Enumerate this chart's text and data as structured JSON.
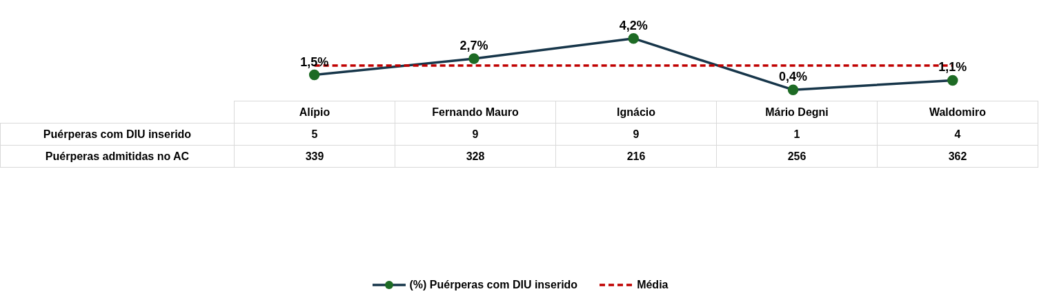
{
  "chart_data": [
    {
      "type": "line",
      "categories": [
        null,
        null,
        null,
        null,
        null
      ],
      "series": [
        {
          "name": "(%) Puérperas com DIU inserido",
          "color": "#17364a",
          "colors": [
            "#1e6b25",
            "#1e6b25",
            "#1e6b25",
            "#1e6b25",
            "#1e6b25"
          ],
          "values": [
            1.5,
            2.7,
            4.2,
            0.4,
            1.1
          ],
          "value_labels": [
            "1,5%",
            "2,7%",
            "4,2%",
            "0,4%",
            "1,1%"
          ]
        }
      ],
      "ref_lines": [
        {
          "axis": "y",
          "value": 2.2,
          "label": "Média",
          "color": "#c00000",
          "line_style": "dashed"
        }
      ],
      "marker": "circle",
      "line_style": "solid",
      "legend": "bottom",
      "tick_labels": false
    },
    {
      "type": "other",
      "categories": [
        "Alípio",
        "Fernando Mauro",
        "Ignácio",
        "Mário Degni",
        "Waldomiro"
      ],
      "series": [
        {
          "name": "Puérperas com DIU inserido",
          "values": [
            5,
            9,
            9,
            1,
            4
          ],
          "value_labels": [
            "5",
            "9",
            "9",
            "1",
            "4"
          ]
        },
        {
          "name": "Puérperas admitidas no AC",
          "values": [
            339,
            328,
            216,
            256,
            362
          ],
          "value_labels": [
            "339",
            "328",
            "216",
            "256",
            "362"
          ]
        }
      ]
    }
  ]
}
